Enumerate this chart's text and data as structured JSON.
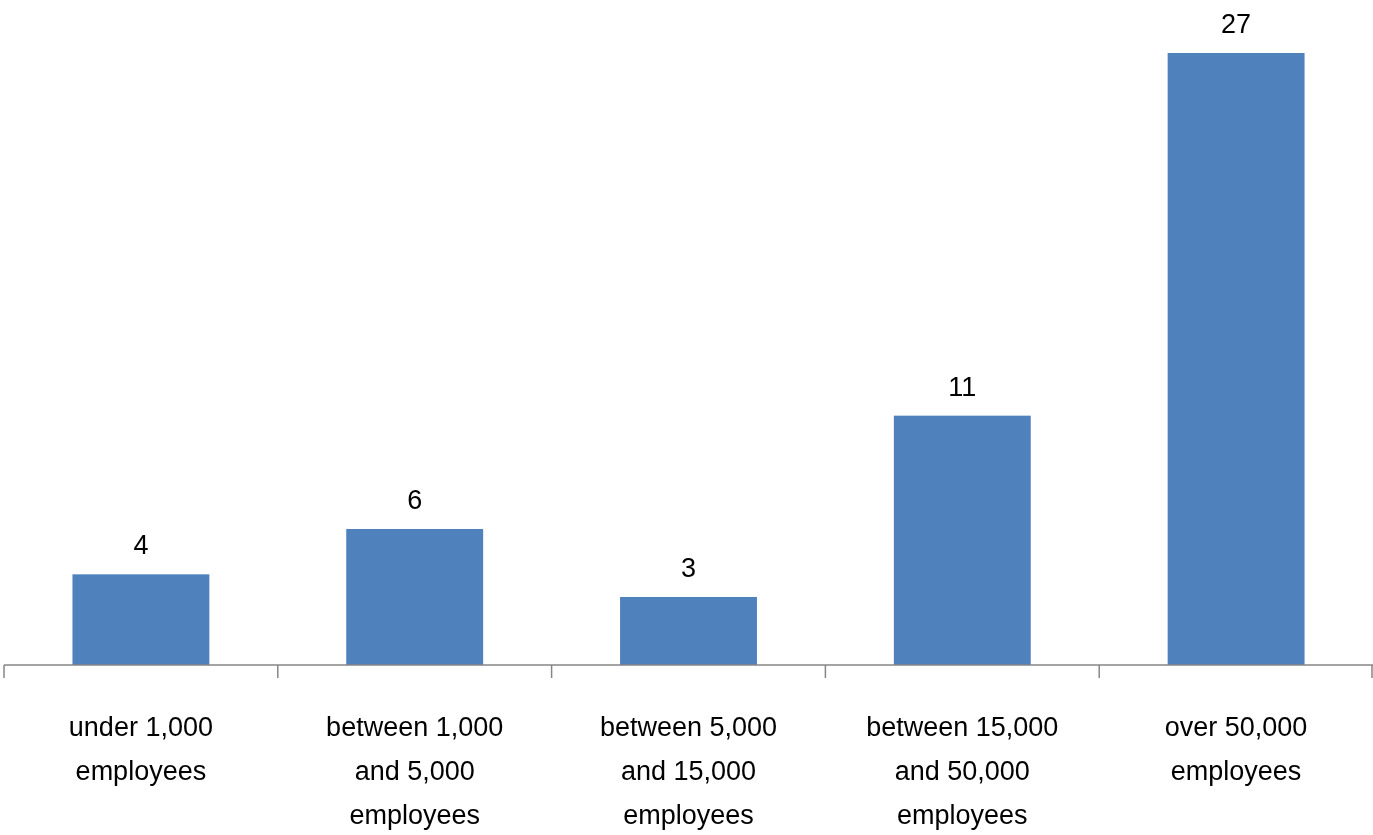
{
  "chart_data": {
    "type": "bar",
    "categories": [
      "under 1,000 employees",
      "between 1,000 and 5,000 employees",
      "between 5,000 and 15,000 employees",
      "between 15,000 and 50,000 employees",
      "over 50,000 employees"
    ],
    "values": [
      4,
      6,
      3,
      11,
      27
    ],
    "color": "#4f81bd",
    "data_labels": true
  }
}
